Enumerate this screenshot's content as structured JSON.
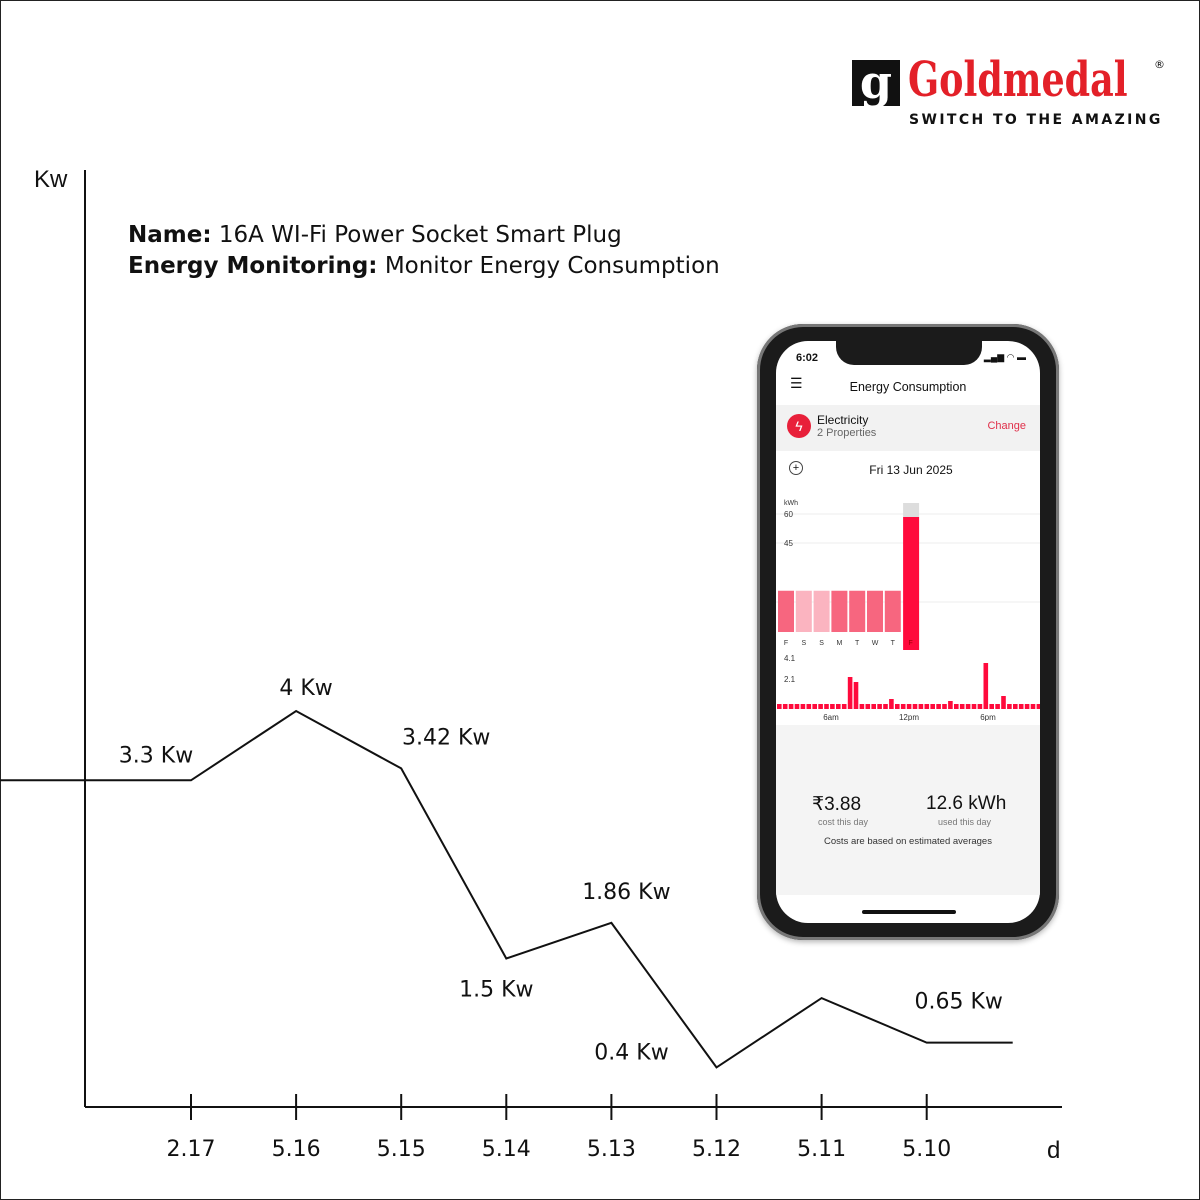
{
  "brand": {
    "name": "Goldmedal",
    "tagline": "SWITCH TO THE AMAZING",
    "color": "#e32028"
  },
  "info": {
    "name_label": "Name:",
    "name_value": "16A WI-Fi Power Socket Smart Plug",
    "energy_label": "Energy Monitoring:",
    "energy_value": "Monitor Energy Consumption"
  },
  "chart_data": {
    "type": "line",
    "ylabel": "Kw",
    "xlabel": "d",
    "categories": [
      "2.17",
      "5.16",
      "5.15",
      "5.14",
      "5.13",
      "5.12",
      "5.11",
      "5.10"
    ],
    "values": [
      3.3,
      4,
      3.42,
      1.5,
      1.86,
      0.4,
      1.1,
      0.65
    ],
    "labels": [
      "3.3 Kw",
      "4 Kw",
      "3.42 Kw",
      "1.5 Kw",
      "1.86 Kw",
      "0.4 Kw",
      "",
      "0.65 Kw"
    ],
    "line_color": "#111111",
    "grid": false
  },
  "phone": {
    "time": "6:02",
    "title": "Energy Consumption",
    "menu_icon": "hamburger-icon",
    "category": "Electricity",
    "properties": "2 Properties",
    "change": "Change",
    "date": "Fri 13 Jun 2025",
    "accent": "#ff0a3c",
    "weekly": {
      "unit": "kWh",
      "ticks": [
        "60",
        "45",
        "15"
      ],
      "days": [
        "F",
        "S",
        "S",
        "M",
        "T",
        "W",
        "T",
        "F"
      ],
      "values": [
        25,
        25,
        25,
        25,
        25,
        25,
        25,
        60
      ]
    },
    "hourly": {
      "ticks": [
        "4.1",
        "2.1"
      ],
      "xticks": [
        "6am",
        "12pm",
        "6pm"
      ]
    },
    "cost": "₹3.88",
    "cost_label": "cost this day",
    "used": "12.6 kWh",
    "used_label": "used this day",
    "note": "Costs are based on estimated averages"
  }
}
